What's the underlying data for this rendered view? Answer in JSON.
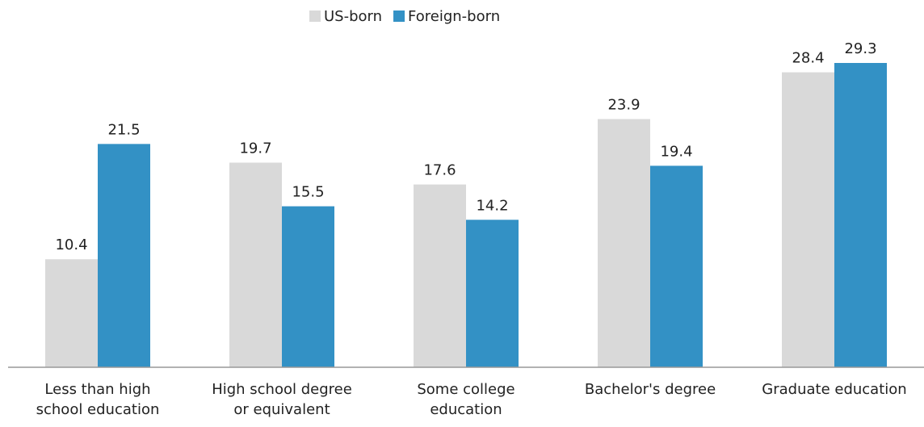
{
  "chart_data": {
    "type": "bar",
    "categories": [
      "Less than high\nschool education",
      "High school degree\nor equivalent",
      "Some college\neducation",
      "Bachelor's degree",
      "Graduate education"
    ],
    "series": [
      {
        "name": "US-born",
        "color": "#d9d9d9",
        "values": [
          10.4,
          19.7,
          17.6,
          23.9,
          28.4
        ]
      },
      {
        "name": "Foreign-born",
        "color": "#3391c5",
        "values": [
          21.5,
          15.5,
          14.2,
          19.4,
          29.3
        ]
      }
    ],
    "legend": "top"
  }
}
